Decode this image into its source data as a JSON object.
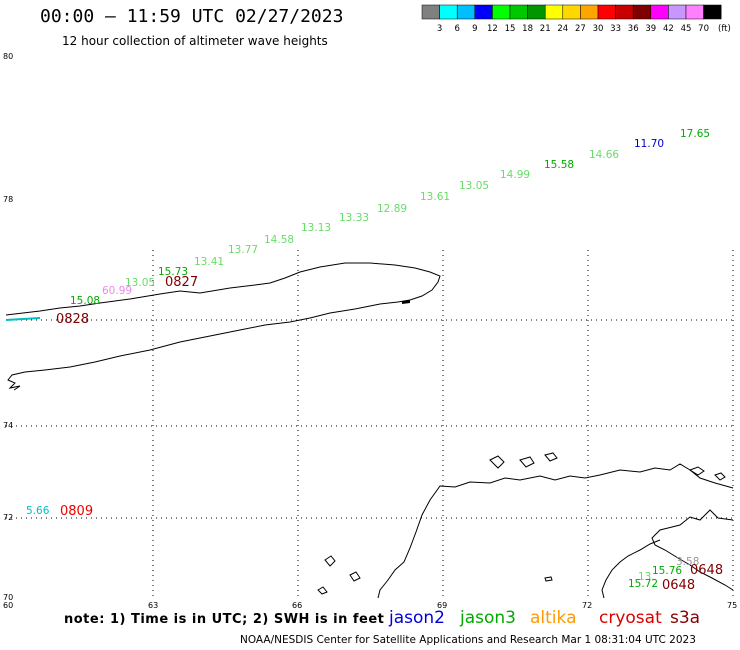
{
  "header": {
    "title": "00:00 – 11:59 UTC 02/27/2023",
    "subtitle": "12 hour collection of altimeter wave heights"
  },
  "legend": {
    "colors": [
      "#808080",
      "#00ffff",
      "#00bfff",
      "#0000ff",
      "#00ff00",
      "#00c800",
      "#009600",
      "#ffff00",
      "#ffd700",
      "#ffa500",
      "#ff0000",
      "#c80000",
      "#800000",
      "#ff00ff",
      "#c896ff",
      "#ff80ff",
      "#000000"
    ],
    "labels": [
      "3",
      "6",
      "9",
      "12",
      "15",
      "18",
      "21",
      "24",
      "27",
      "30",
      "33",
      "36",
      "39",
      "42",
      "45",
      "70"
    ],
    "unit": "(ft)"
  },
  "axes": {
    "lat_labels": [
      "80",
      "78",
      "74",
      "72",
      "70"
    ],
    "lon_labels": [
      "60",
      "63",
      "66",
      "69",
      "72",
      "75"
    ]
  },
  "track_labels": {
    "values": [
      {
        "text": "17.65",
        "color": "#00aa00"
      },
      {
        "text": "11.70",
        "color": "#0000cc"
      },
      {
        "text": "14.66",
        "color": "#66dd66"
      },
      {
        "text": "15.58",
        "color": "#00aa00"
      },
      {
        "text": "14.99",
        "color": "#66dd66"
      },
      {
        "text": "13.05",
        "color": "#66dd66"
      },
      {
        "text": "13.61",
        "color": "#66dd66"
      },
      {
        "text": "12.89",
        "color": "#66dd66"
      },
      {
        "text": "13.33",
        "color": "#66dd66"
      },
      {
        "text": "13.13",
        "color": "#66dd66"
      },
      {
        "text": "14.58",
        "color": "#66dd66"
      },
      {
        "text": "13.77",
        "color": "#66dd66"
      },
      {
        "text": "13.41",
        "color": "#66dd66"
      },
      {
        "text": "15.73",
        "color": "#00aa00"
      },
      {
        "text": "13.05",
        "color": "#66dd66"
      },
      {
        "text": "60.99",
        "color": "#ee88ee"
      },
      {
        "text": "15.08",
        "color": "#00aa00"
      },
      {
        "text": "5.66",
        "color": "#00bfbf"
      },
      {
        "text": "3.58",
        "color": "#999999"
      },
      {
        "text": "15.76",
        "color": "#00aa00"
      },
      {
        "text": "13.",
        "color": "#66dd66"
      },
      {
        "text": "15.72",
        "color": "#00aa00"
      }
    ],
    "times": [
      {
        "text": "0827",
        "color": "#800000"
      },
      {
        "text": "0828",
        "color": "#800000"
      },
      {
        "text": "0809",
        "color": "#ee0000"
      },
      {
        "text": "0648",
        "color": "#800000"
      },
      {
        "text": "0648",
        "color": "#800000"
      }
    ]
  },
  "footer": {
    "note": "note: 1) Time is in UTC; 2) SWH is in feet",
    "satellites": [
      {
        "name": "jason2",
        "color": "#0000dd"
      },
      {
        "name": "jason3",
        "color": "#00aa00"
      },
      {
        "name": "altika",
        "color": "#ff9900"
      },
      {
        "name": "cryosat",
        "color": "#dd0000"
      },
      {
        "name": "s3a",
        "color": "#880000"
      }
    ],
    "credit": "NOAA/NESDIS Center for Satellite Applications and Research   Mar  1 08:31:04 UTC 2023"
  }
}
